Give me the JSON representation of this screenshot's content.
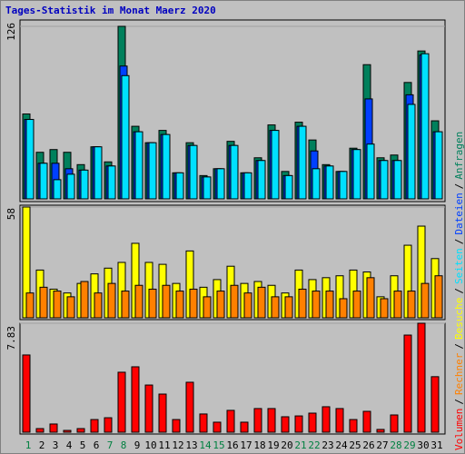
{
  "chart_data": [
    {
      "type": "bar",
      "title": "Tages-Statistik im Monat Maerz 2020",
      "ylim": [
        0,
        126
      ],
      "yticks": [
        126
      ],
      "series": [
        {
          "name": "Anfragen",
          "color": "#00805c",
          "values": [
            62,
            34,
            36,
            34,
            25,
            38,
            27,
            126,
            53,
            41,
            50,
            19,
            41,
            17,
            22,
            42,
            19,
            30,
            54,
            20,
            56,
            43,
            25,
            20,
            37,
            98,
            30,
            32,
            85,
            108,
            57
          ]
        },
        {
          "name": "Dateien",
          "color": "#0040ff",
          "values": [
            58,
            26,
            26,
            22,
            21,
            38,
            24,
            97,
            49,
            41,
            47,
            19,
            39,
            16,
            22,
            39,
            19,
            28,
            50,
            17,
            53,
            35,
            24,
            20,
            36,
            73,
            28,
            28,
            76,
            105,
            49
          ]
        },
        {
          "name": "Seiten",
          "color": "#00e0ff",
          "values": [
            58,
            26,
            14,
            18,
            21,
            38,
            24,
            90,
            49,
            41,
            47,
            19,
            39,
            16,
            22,
            39,
            19,
            28,
            50,
            17,
            53,
            22,
            24,
            20,
            36,
            40,
            28,
            28,
            69,
            106,
            49
          ]
        }
      ]
    },
    {
      "type": "bar",
      "ylim": [
        0,
        58
      ],
      "yticks": [
        58
      ],
      "series": [
        {
          "name": "Besuche",
          "color": "#ffff00",
          "values": [
            58,
            25,
            15,
            13,
            18,
            23,
            26,
            29,
            39,
            29,
            28,
            18,
            35,
            16,
            20,
            27,
            18,
            19,
            17,
            13,
            25,
            20,
            21,
            22,
            25,
            24,
            11,
            22,
            38,
            48,
            31
          ]
        },
        {
          "name": "Rechner",
          "color": "#ff8000",
          "values": [
            13,
            16,
            14,
            11,
            19,
            13,
            18,
            14,
            17,
            15,
            17,
            14,
            15,
            11,
            14,
            17,
            13,
            16,
            11,
            11,
            15,
            14,
            14,
            10,
            14,
            21,
            10,
            14,
            14,
            18,
            22
          ]
        }
      ]
    },
    {
      "type": "bar",
      "ylim": [
        0,
        7.83
      ],
      "yticks": [
        7.83
      ],
      "categories": [
        "1",
        "2",
        "3",
        "4",
        "5",
        "6",
        "7",
        "8",
        "9",
        "10",
        "11",
        "12",
        "13",
        "14",
        "15",
        "16",
        "17",
        "18",
        "19",
        "20",
        "21",
        "22",
        "23",
        "24",
        "25",
        "26",
        "27",
        "28",
        "29",
        "30",
        "31"
      ],
      "category_colors": [
        "#008040",
        "#000000",
        "#000000",
        "#000000",
        "#000000",
        "#000000",
        "#008040",
        "#008040",
        "#000000",
        "#000000",
        "#000000",
        "#000000",
        "#000000",
        "#008040",
        "#008040",
        "#000000",
        "#000000",
        "#000000",
        "#000000",
        "#000000",
        "#008040",
        "#008040",
        "#000000",
        "#000000",
        "#000000",
        "#000000",
        "#000000",
        "#008040",
        "#008040",
        "#000000",
        "#000000"
      ],
      "legend_separator": "/",
      "series": [
        {
          "name": "Volumen",
          "color": "#ff0000",
          "values": [
            5.55,
            0.26,
            0.59,
            0.13,
            0.26,
            0.91,
            1.04,
            4.31,
            4.7,
            3.39,
            2.74,
            0.91,
            3.59,
            1.31,
            0.72,
            1.57,
            0.72,
            1.7,
            1.7,
            1.11,
            1.17,
            1.37,
            1.83,
            1.7,
            0.91,
            1.5,
            0.2,
            1.24,
            6.98,
            7.83,
            3.99
          ]
        }
      ]
    }
  ]
}
